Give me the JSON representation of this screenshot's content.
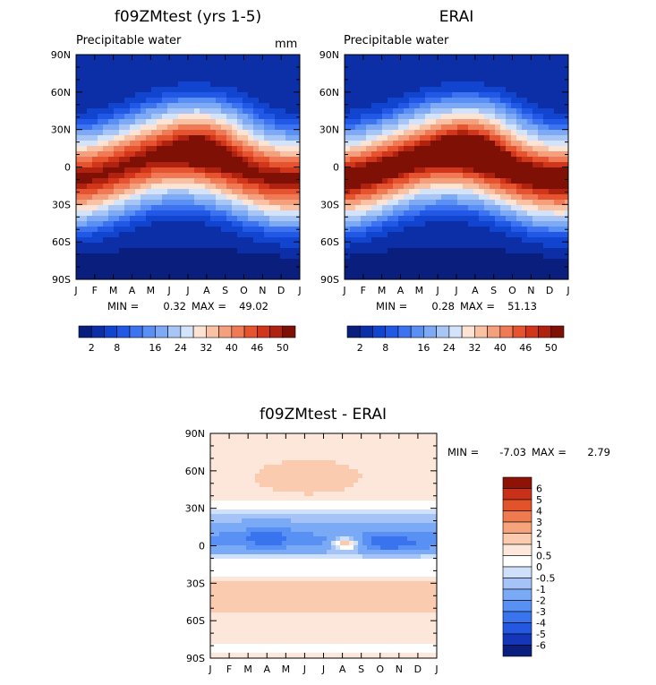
{
  "palette_main": [
    "#0a1f7d",
    "#0c2fa8",
    "#1245cf",
    "#2159e6",
    "#3d72f0",
    "#5a8ff3",
    "#7ea9f4",
    "#a7c6f6",
    "#d2e3fa",
    "#fde3d3",
    "#f9c2a5",
    "#f5a07d",
    "#ef7a55",
    "#e6542f",
    "#d1361a",
    "#b02210",
    "#7f1006"
  ],
  "palette_diff": [
    "#0a1f7d",
    "#1636b9",
    "#2558e0",
    "#3a73ee",
    "#5891f3",
    "#7aa9f5",
    "#a5c3f7",
    "#cfe0fa",
    "#ffffff",
    "#fde7da",
    "#fbcbb0",
    "#f6a47c",
    "#ef7a50",
    "#e3532b",
    "#c8301a",
    "#8e1206"
  ],
  "months": [
    "J",
    "F",
    "M",
    "A",
    "M",
    "J",
    "J",
    "A",
    "S",
    "O",
    "N",
    "D",
    "J"
  ],
  "lat_labels": [
    "90N",
    "60N",
    "30N",
    "0",
    "30S",
    "60S",
    "90S"
  ],
  "panels": [
    {
      "title": "f09ZMtest (yrs 1-5)",
      "subtitle": "Precipitable water",
      "units": "mm",
      "min_label": "MIN =",
      "min": "0.32",
      "max_label": "MAX =",
      "max": "49.02"
    },
    {
      "title": "ERAI",
      "subtitle": "Precipitable water",
      "units": "",
      "min_label": "MIN =",
      "min": "0.28",
      "max_label": "MAX =",
      "max": "51.13"
    },
    {
      "title": "f09ZMtest - ERAI",
      "subtitle": "",
      "units": "",
      "min_label": "MIN =",
      "min": "-7.03",
      "max_label": "MAX =",
      "max": "2.79"
    }
  ],
  "colorbar_main_labels": [
    "2",
    "8",
    "16",
    "24",
    "32",
    "40",
    "46",
    "50"
  ],
  "colorbar_diff_labels": [
    "6",
    "5",
    "4",
    "3",
    "2",
    "1",
    "0.5",
    "0",
    "-0.5",
    "-1",
    "-2",
    "-3",
    "-4",
    "-5",
    "-6"
  ],
  "chart_data": [
    {
      "type": "heatmap",
      "title": "f09ZMtest (yrs 1-5)",
      "subtitle": "Precipitable water",
      "units": "mm",
      "x": [
        "J",
        "F",
        "M",
        "A",
        "M",
        "J",
        "J",
        "A",
        "S",
        "O",
        "N",
        "D",
        "J"
      ],
      "y": [
        "90N",
        "60N",
        "30N",
        "0",
        "30S",
        "60S",
        "90S"
      ],
      "min": 0.32,
      "max": 49.02,
      "levels": [
        2,
        4,
        6,
        8,
        10,
        12,
        16,
        20,
        24,
        28,
        32,
        36,
        40,
        44,
        46,
        48,
        50
      ]
    },
    {
      "type": "heatmap",
      "title": "ERAI",
      "subtitle": "Precipitable water",
      "x": [
        "J",
        "F",
        "M",
        "A",
        "M",
        "J",
        "J",
        "A",
        "S",
        "O",
        "N",
        "D",
        "J"
      ],
      "y": [
        "90N",
        "60N",
        "30N",
        "0",
        "30S",
        "60S",
        "90S"
      ],
      "min": 0.28,
      "max": 51.13,
      "levels": [
        2,
        4,
        6,
        8,
        10,
        12,
        16,
        20,
        24,
        28,
        32,
        36,
        40,
        44,
        46,
        48,
        50
      ]
    },
    {
      "type": "heatmap",
      "title": "f09ZMtest - ERAI",
      "x": [
        "J",
        "F",
        "M",
        "A",
        "M",
        "J",
        "J",
        "A",
        "S",
        "O",
        "N",
        "D",
        "J"
      ],
      "y": [
        "90N",
        "60N",
        "30N",
        "0",
        "30S",
        "60S",
        "90S"
      ],
      "min": -7.03,
      "max": 2.79,
      "levels": [
        -6,
        -5,
        -4,
        -3,
        -2,
        -1,
        -0.5,
        0,
        0.5,
        1,
        2,
        3,
        4,
        5,
        6
      ]
    }
  ]
}
